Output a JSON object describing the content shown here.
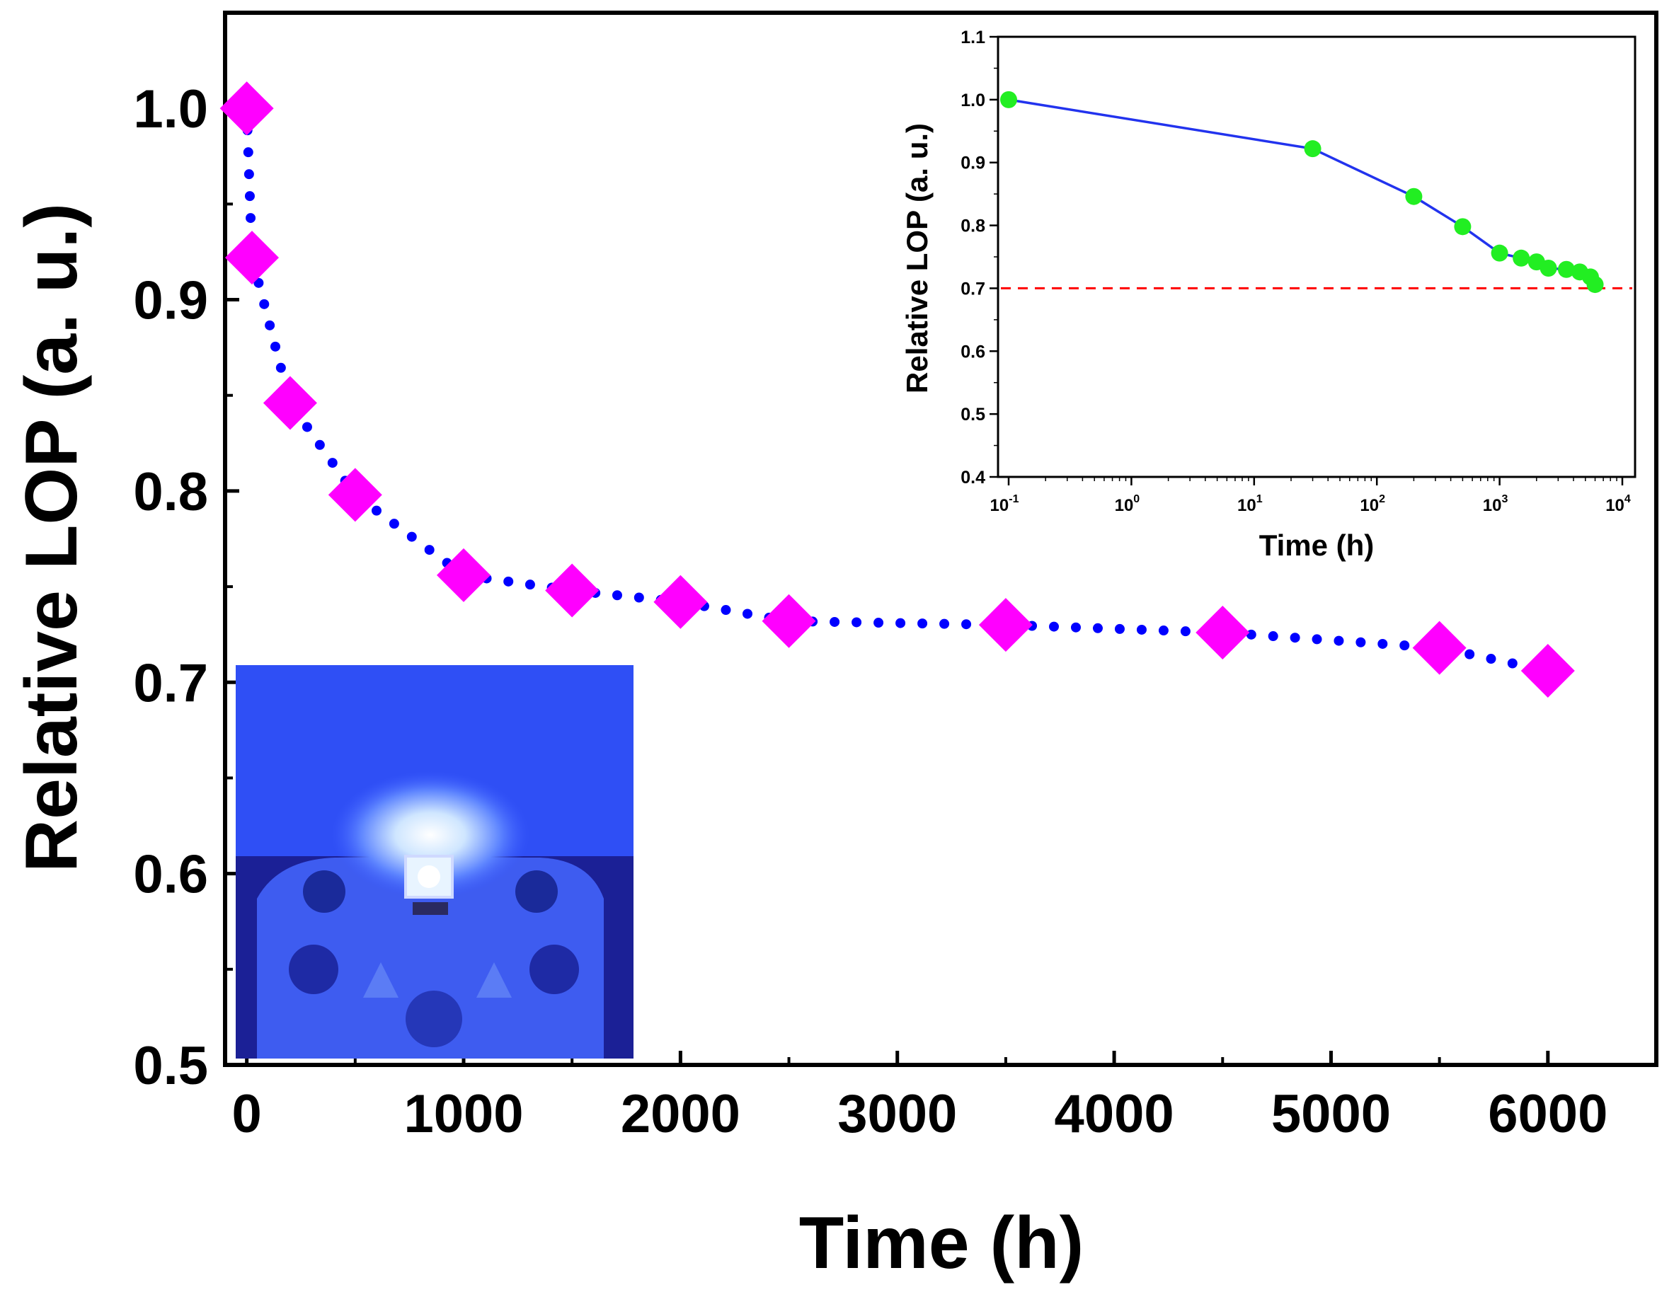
{
  "chart_data": [
    {
      "type": "scatter",
      "title": "",
      "xlabel": "Time (h)",
      "ylabel": "Relative LOP (a. u.)",
      "xlim": [
        -100,
        6500
      ],
      "ylim": [
        0.5,
        1.05
      ],
      "xticks": [
        0,
        1000,
        2000,
        3000,
        4000,
        5000,
        6000
      ],
      "xtick_labels": [
        "0",
        "1000",
        "2000",
        "3000",
        "4000",
        "5000",
        "6000"
      ],
      "yticks": [
        0.5,
        0.6,
        0.7,
        0.8,
        0.9,
        1.0
      ],
      "ytick_labels": [
        "0.5",
        "0.6",
        "0.7",
        "0.8",
        "0.9",
        "1.0"
      ],
      "series": [
        {
          "marker": "diamond",
          "color": "#ff00ff",
          "line_color": "#0000ff",
          "line_style": "dotted",
          "x": [
            0,
            24,
            200,
            500,
            1000,
            1500,
            2000,
            2500,
            3500,
            4500,
            5500,
            6000
          ],
          "y": [
            1.0,
            0.922,
            0.846,
            0.798,
            0.756,
            0.748,
            0.742,
            0.732,
            0.73,
            0.726,
            0.718,
            0.706
          ]
        }
      ],
      "grid": false
    },
    {
      "type": "line",
      "title": "",
      "xlabel": "Time (h)",
      "ylabel": "Relative LOP (a. u.)",
      "xscale": "log",
      "xlim": [
        0.1,
        10000
      ],
      "ylim": [
        0.4,
        1.1
      ],
      "xticks": [
        0.1,
        1,
        10,
        100,
        1000,
        10000
      ],
      "xtick_labels": [
        {
          "base": "10",
          "exp": "-1"
        },
        {
          "base": "10",
          "exp": "0"
        },
        {
          "base": "10",
          "exp": "1"
        },
        {
          "base": "10",
          "exp": "2"
        },
        {
          "base": "10",
          "exp": "3"
        },
        {
          "base": "10",
          "exp": "4"
        }
      ],
      "yticks": [
        0.4,
        0.5,
        0.6,
        0.7,
        0.8,
        0.9,
        1.0,
        1.1
      ],
      "ytick_labels": [
        "0.4",
        "0.5",
        "0.6",
        "0.7",
        "0.8",
        "0.9",
        "1.0",
        "1.1"
      ],
      "series": [
        {
          "marker": "circle",
          "color": "#22ee22",
          "line_color": "#2233ee",
          "x": [
            0.1,
            30,
            200,
            500,
            1000,
            1500,
            2000,
            2500,
            3500,
            4500,
            5500,
            6000
          ],
          "y": [
            1.0,
            0.922,
            0.846,
            0.798,
            0.756,
            0.748,
            0.742,
            0.732,
            0.73,
            0.726,
            0.718,
            0.706
          ]
        }
      ],
      "reference_line": {
        "y": 0.7,
        "color": "#ff0000",
        "style": "dashed"
      },
      "grid": false
    }
  ]
}
